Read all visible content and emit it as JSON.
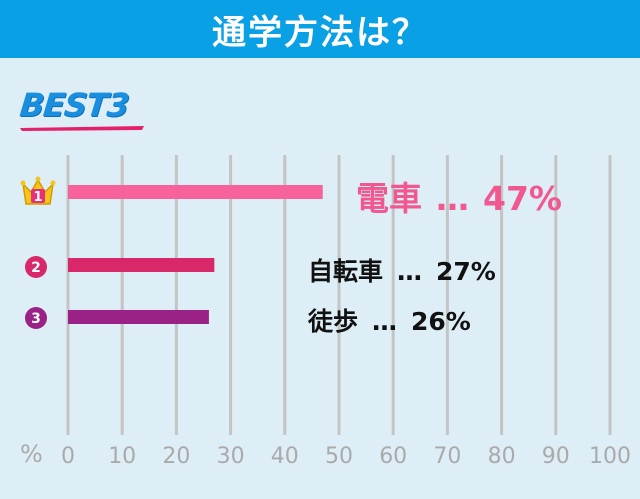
{
  "header": {
    "title": "通学方法は？"
  },
  "best_badge": {
    "text": "BEST3"
  },
  "chart_data": {
    "type": "bar",
    "orientation": "horizontal",
    "categories": [
      "電車",
      "自転車",
      "徒歩"
    ],
    "values": [
      47,
      27,
      26
    ],
    "unit": "%",
    "xlim": [
      0,
      100
    ],
    "x_ticks": [
      "0",
      "10",
      "20",
      "30",
      "40",
      "50",
      "60",
      "70",
      "80",
      "90",
      "100"
    ],
    "axis_unit_label": "%",
    "grid": true,
    "colors": [
      "#f7629b",
      "#d8286a",
      "#9a2185"
    ],
    "ranks": [
      "1",
      "2",
      "3"
    ],
    "value_labels": [
      "47%",
      "27%",
      "26%"
    ],
    "separator": "…"
  }
}
